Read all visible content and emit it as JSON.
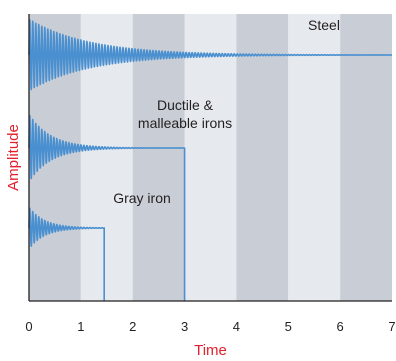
{
  "chart_data": {
    "type": "line",
    "title": "",
    "xlabel": "Time",
    "ylabel": "Amplitude",
    "xlim": [
      0,
      7
    ],
    "xticks": [
      0,
      1,
      2,
      3,
      4,
      5,
      6,
      7
    ],
    "xtick_labels": [
      "0",
      "1",
      "2",
      "3",
      "4",
      "5",
      "6",
      "7"
    ],
    "y_ticks_shown": false,
    "background_bands": "alternating grey and light-grey vertical bands, one per time unit",
    "series": [
      {
        "name": "Steel",
        "label": "Steel",
        "end_time": 7.0,
        "decay": "slow",
        "color": "#4a90d0"
      },
      {
        "name": "Ductile & malleable irons",
        "label_lines": [
          "Ductile &",
          "malleable irons"
        ],
        "end_time": 3.0,
        "decay": "moderate",
        "color": "#4a90d0"
      },
      {
        "name": "Gray iron",
        "label": "Gray iron",
        "end_time": 1.45,
        "decay": "fast",
        "color": "#4a90d0"
      }
    ],
    "colors": {
      "band_dark": "#c9ced6",
      "band_light": "#e6e9ee",
      "axis": "#231f20",
      "axis_label": "#e3202d",
      "signal": "#4a90d0",
      "tick_label": "#231f20",
      "series_label": "#231f20"
    }
  }
}
